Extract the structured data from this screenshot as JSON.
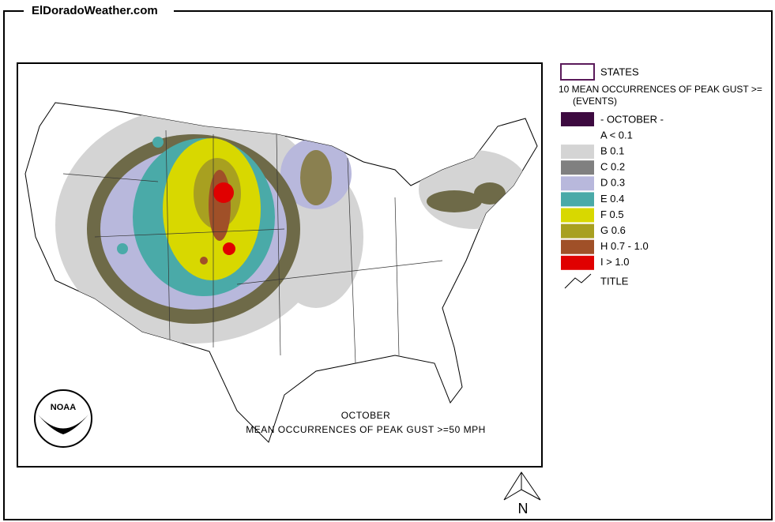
{
  "header": {
    "site": "ElDoradoWeather.com"
  },
  "legend": {
    "states": "STATES",
    "heading_lines": [
      "10 MEAN OCCURRENCES OF PEAK GUST >=",
      "(EVENTS)"
    ],
    "period": {
      "label": "- OCTOBER -",
      "color": "#3d0a40"
    },
    "items": [
      {
        "label": "A < 0.1",
        "color": "#ffffff"
      },
      {
        "label": "B 0.1",
        "color": "#d4d4d4"
      },
      {
        "label": "C 0.2",
        "color": "#808080"
      },
      {
        "label": "D 0.3",
        "color": "#b8b8dc"
      },
      {
        "label": "E 0.4",
        "color": "#4aaaa8"
      },
      {
        "label": "F 0.5",
        "color": "#d8d800"
      },
      {
        "label": "G 0.6",
        "color": "#a8a020"
      },
      {
        "label": "H 0.7 - 1.0",
        "color": "#a05028"
      },
      {
        "label": "I > 1.0",
        "color": "#e00000"
      }
    ],
    "title_item": "TITLE"
  },
  "map": {
    "title_lines": [
      "OCTOBER",
      "MEAN OCCURRENCES OF PEAK GUST >=50 MPH"
    ],
    "logo_text": "NOAA"
  },
  "compass": {
    "label": "N"
  }
}
